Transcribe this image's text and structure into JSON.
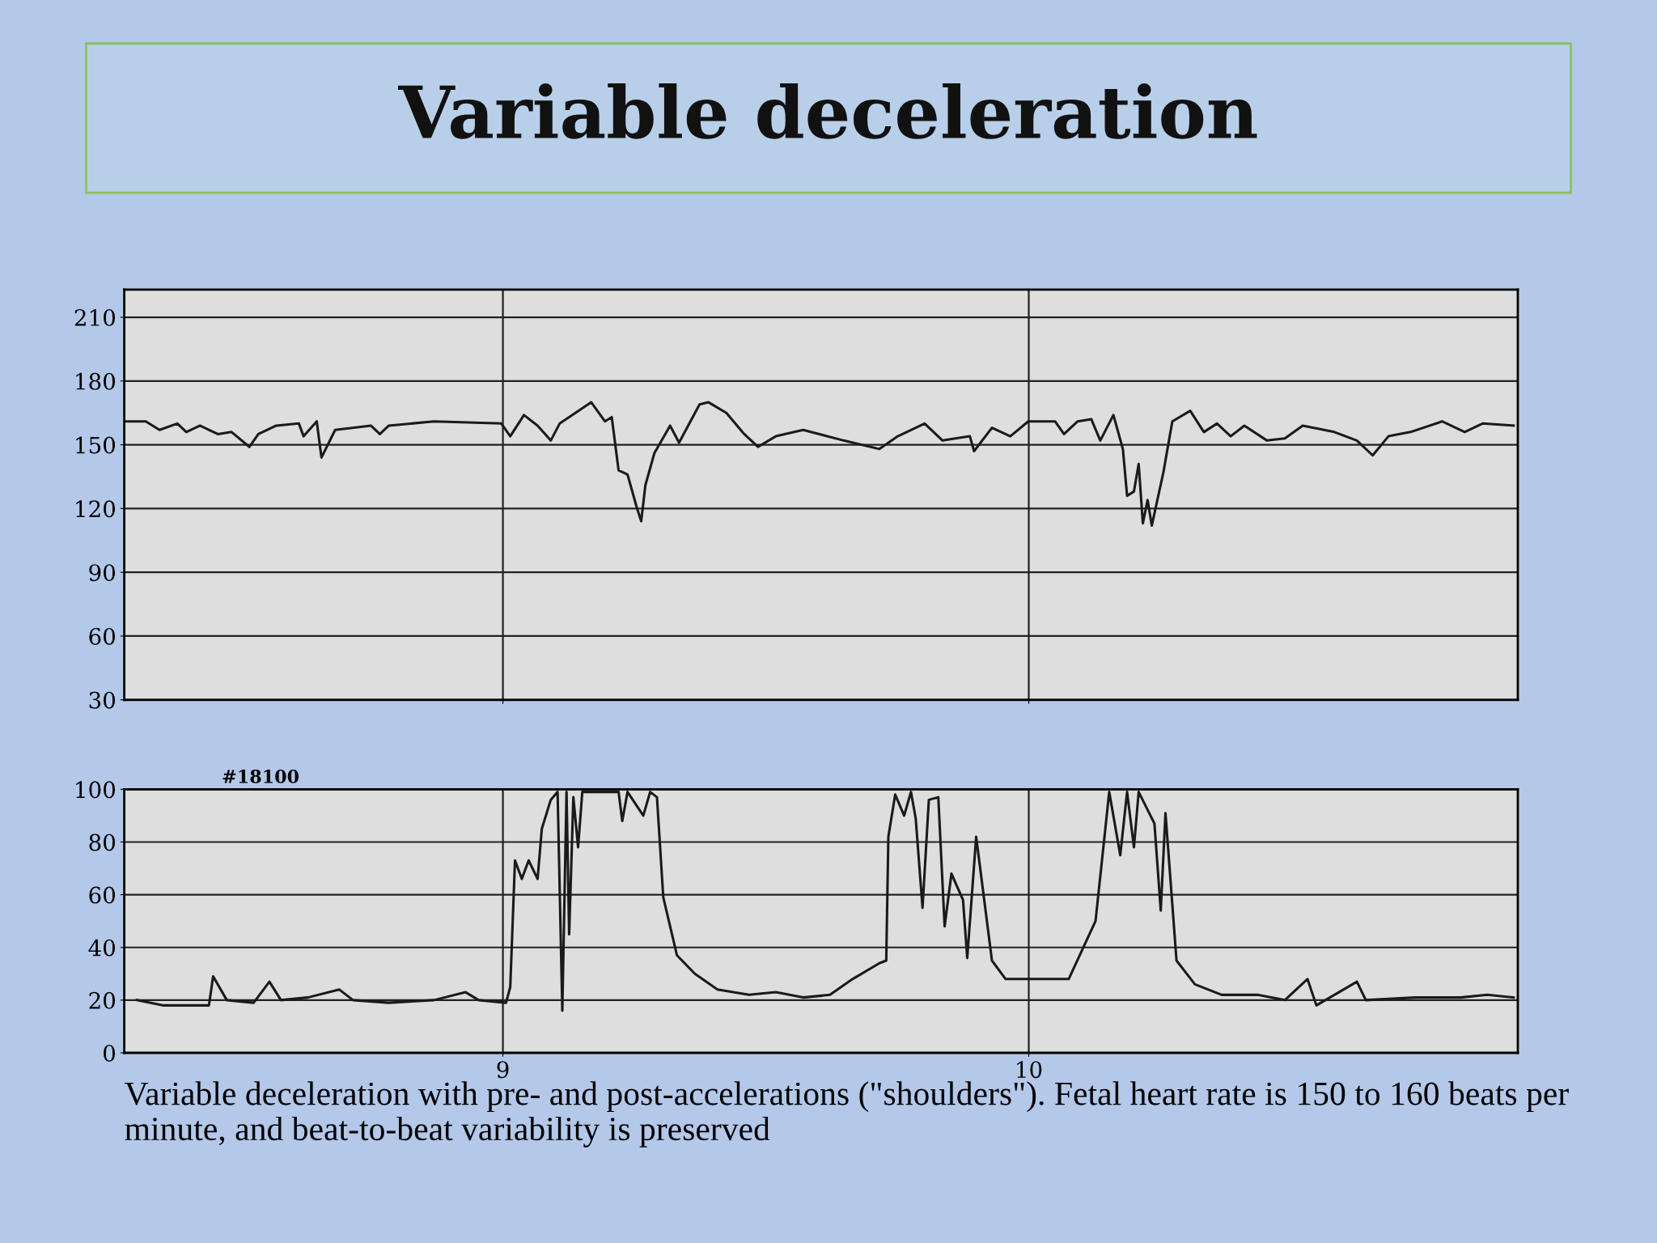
{
  "chart_data": [
    {
      "type": "line",
      "title": "Variable deceleration",
      "x": [
        8.28,
        8.321,
        8.347,
        8.381,
        8.398,
        8.424,
        8.458,
        8.484,
        8.518,
        8.535,
        8.569,
        8.612,
        8.621,
        8.646,
        8.655,
        8.681,
        8.749,
        8.766,
        8.783,
        8.869,
        8.997,
        9.014,
        9.04,
        9.066,
        9.091,
        9.108,
        9.168,
        9.194,
        9.207,
        9.22,
        9.237,
        9.254,
        9.263,
        9.271,
        9.288,
        9.318,
        9.335,
        9.374,
        9.391,
        9.425,
        9.459,
        9.485,
        9.519,
        9.571,
        9.648,
        9.716,
        9.751,
        9.802,
        9.836,
        9.888,
        9.896,
        9.93,
        9.965,
        9.999,
        10.05,
        10.067,
        10.093,
        10.119,
        10.136,
        10.161,
        10.179,
        10.187,
        10.2,
        10.209,
        10.217,
        10.226,
        10.234,
        10.256,
        10.273,
        10.307,
        10.333,
        10.358,
        10.384,
        10.41,
        10.453,
        10.487,
        10.521,
        10.581,
        10.624,
        10.654,
        10.684,
        10.726,
        10.786,
        10.829,
        10.863,
        10.922
      ],
      "series": [
        {
          "color": "#1a1a1a",
          "values": [
            161,
            161,
            157,
            160,
            156,
            159,
            155,
            156,
            149,
            155,
            159,
            160,
            154,
            161,
            144,
            157,
            159,
            155,
            159,
            161,
            160,
            154,
            164,
            159,
            152,
            160,
            170,
            161,
            163,
            138,
            136,
            121,
            114,
            131,
            146,
            159,
            151,
            169,
            170,
            165,
            155,
            149,
            154,
            157,
            152,
            148,
            154,
            160,
            152,
            154,
            147,
            158,
            154,
            161,
            161,
            155,
            161,
            162,
            152,
            164,
            148,
            126,
            128,
            141,
            113,
            124,
            112,
            137,
            161,
            166,
            156,
            160,
            154,
            159,
            152,
            153,
            159,
            156,
            152,
            145,
            154,
            156,
            161,
            156,
            160,
            159
          ]
        }
      ],
      "xlim": [
        8.28,
        10.93
      ],
      "xticks": [
        9,
        10
      ],
      "ylim": [
        30,
        223
      ],
      "yticks": [
        30,
        60,
        90,
        120,
        150,
        180,
        210
      ],
      "grid": true,
      "tick_labels": "y"
    },
    {
      "type": "line",
      "x": [
        8.304,
        8.355,
        8.407,
        8.441,
        8.449,
        8.475,
        8.526,
        8.556,
        8.578,
        8.629,
        8.689,
        8.715,
        8.783,
        8.869,
        8.929,
        8.954,
        9.006,
        9.014,
        9.023,
        9.036,
        9.049,
        9.066,
        9.074,
        9.091,
        9.104,
        9.113,
        9.121,
        9.126,
        9.134,
        9.143,
        9.151,
        9.22,
        9.227,
        9.237,
        9.267,
        9.28,
        9.293,
        9.305,
        9.331,
        9.365,
        9.408,
        9.468,
        9.519,
        9.571,
        9.622,
        9.665,
        9.716,
        9.729,
        9.733,
        9.746,
        9.763,
        9.776,
        9.785,
        9.798,
        9.81,
        9.828,
        9.84,
        9.853,
        9.875,
        9.883,
        9.9,
        9.93,
        9.956,
        10.007,
        10.076,
        10.127,
        10.144,
        10.153,
        10.174,
        10.187,
        10.2,
        10.209,
        10.239,
        10.251,
        10.26,
        10.281,
        10.316,
        10.367,
        10.435,
        10.487,
        10.53,
        10.547,
        10.624,
        10.641,
        10.735,
        10.821,
        10.872,
        10.922
      ],
      "series": [
        {
          "color": "#1a1a1a",
          "values": [
            20,
            18,
            18,
            18,
            29,
            20,
            19,
            27,
            20,
            21,
            24,
            20,
            19,
            20,
            23,
            20,
            19,
            25,
            73,
            66,
            73,
            66,
            85,
            96,
            99,
            16,
            99,
            45,
            97,
            78,
            99,
            99,
            88,
            99,
            90,
            99,
            97,
            59,
            37,
            30,
            24,
            22,
            23,
            21,
            22,
            28,
            34,
            35,
            82,
            98,
            90,
            99,
            89,
            55,
            96,
            97,
            48,
            68,
            58,
            36,
            82,
            35,
            28,
            28,
            28,
            50,
            82,
            99,
            75,
            99,
            78,
            99,
            87,
            54,
            91,
            35,
            26,
            22,
            22,
            20,
            28,
            18,
            27,
            20,
            21,
            21,
            22,
            21
          ]
        }
      ],
      "xlim": [
        8.28,
        10.93
      ],
      "xticks": [
        9,
        10
      ],
      "ylim": [
        0,
        100
      ],
      "yticks": [
        0,
        20,
        40,
        60,
        80,
        100
      ],
      "grid": true,
      "annotations": [
        "#18100",
        "Variable deceleration with pre- and post-accelerations (\"shoulders\"). Fetal heart rate is 150 to 160 beats per minute, and beat-to-beat variability is preserved"
      ]
    }
  ]
}
